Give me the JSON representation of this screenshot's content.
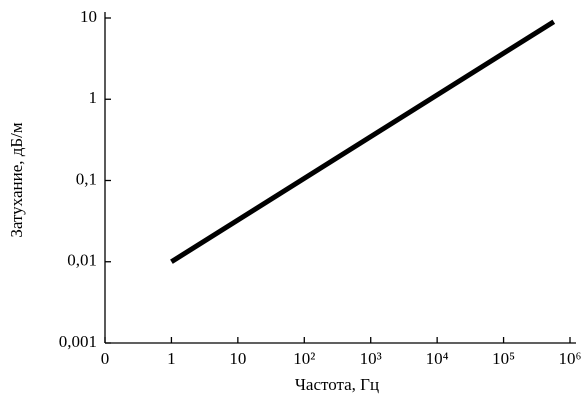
{
  "chart_data": {
    "type": "line",
    "x_label": "Частота, Гц",
    "y_label": "Затухание, дБ/м",
    "x": [
      1,
      570000
    ],
    "series": [
      {
        "color": "#000000",
        "values": [
          0.01,
          9
        ]
      }
    ],
    "x_log": true,
    "y_log": true,
    "xlim": [
      0.1,
      1000000
    ],
    "xticks": [
      {
        "value": 0.1,
        "label": "0"
      },
      1,
      10,
      {
        "value": 100,
        "label": "10²"
      },
      {
        "value": 1000,
        "label": "10³"
      },
      {
        "value": 10000,
        "label": "10⁴"
      },
      {
        "value": 100000,
        "label": "10⁵"
      },
      {
        "value": 1000000,
        "label": "10⁶"
      }
    ],
    "ylim": [
      0.001,
      10
    ],
    "yticks": [
      {
        "value": 0.001,
        "label": "0,001"
      },
      {
        "value": 0.01,
        "label": "0,01"
      },
      {
        "value": 0.1,
        "label": "0,1"
      },
      1,
      10
    ],
    "grid": false
  }
}
